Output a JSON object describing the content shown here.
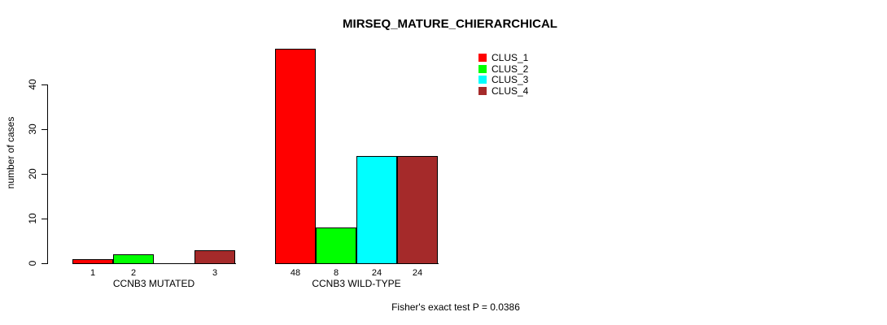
{
  "chart_data": {
    "type": "bar",
    "title": "MIRSEQ_MATURE_CHIERARCHICAL",
    "ylabel": "number of cases",
    "xlabel": "",
    "ylim": [
      0,
      40
    ],
    "yticks": [
      0,
      10,
      20,
      30,
      40
    ],
    "grid": false,
    "legend_position": "top-right",
    "categories": [
      "CCNB3 MUTATED",
      "CCNB3 WILD-TYPE"
    ],
    "series": [
      {
        "name": "CLUS_1",
        "color": "#ff0000",
        "values": [
          1,
          48
        ]
      },
      {
        "name": "CLUS_2",
        "color": "#00ff00",
        "values": [
          2,
          8
        ]
      },
      {
        "name": "CLUS_3",
        "color": "#00ffff",
        "values": [
          0,
          24
        ]
      },
      {
        "name": "CLUS_4",
        "color": "#a52a2a",
        "values": [
          3,
          24
        ]
      }
    ],
    "bar_value_labels": [
      [
        "1",
        "2",
        "",
        "3"
      ],
      [
        "48",
        "8",
        "24",
        "24"
      ]
    ],
    "annotation": "Fisher's exact test P = 0.0386",
    "axis_color": "#000000",
    "background_color": "#ffffff"
  }
}
